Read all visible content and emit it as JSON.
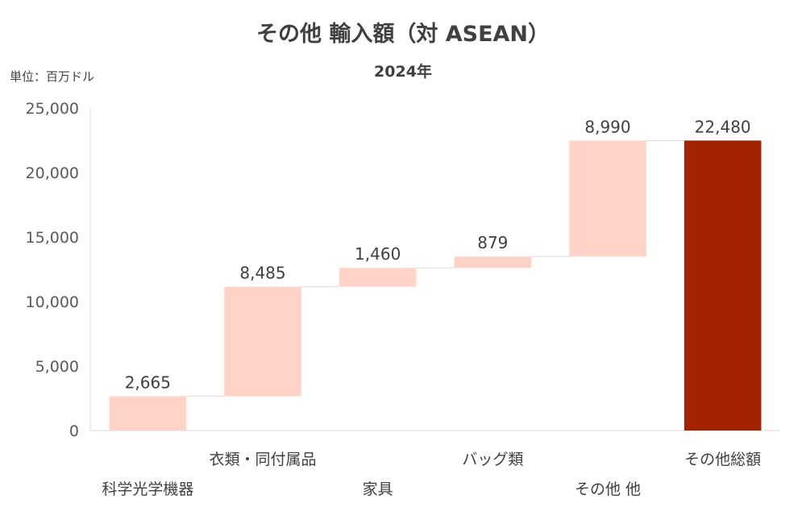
{
  "chart_data": {
    "type": "bar",
    "subtype": "waterfall",
    "title": "その他 輸入額（対 ASEAN）",
    "subtitle": "2024年",
    "unit_label": "単位：百万ドル",
    "categories": [
      "科学光学機器",
      "衣類・同付属品",
      "家具",
      "バッグ類",
      "その他 他",
      "その他総額"
    ],
    "values": [
      2665,
      8485,
      1460,
      879,
      8990,
      22480
    ],
    "data_labels": [
      "2,665",
      "8,485",
      "1,460",
      "879",
      "8,990",
      "22,480"
    ],
    "bar_kind": [
      "increase",
      "increase",
      "increase",
      "increase",
      "increase",
      "total"
    ],
    "ylim": [
      0,
      25000
    ],
    "yticks": [
      0,
      5000,
      10000,
      15000,
      20000,
      25000
    ],
    "ytick_labels": [
      "0",
      "5,000",
      "10,000",
      "15,000",
      "20,000",
      "25,000"
    ],
    "grid": false,
    "legend": "none",
    "colors": {
      "increase": "#FFD3C8",
      "total": "#A32200",
      "connector": "#D9D9D9",
      "axis": "#D9D9D9"
    }
  }
}
